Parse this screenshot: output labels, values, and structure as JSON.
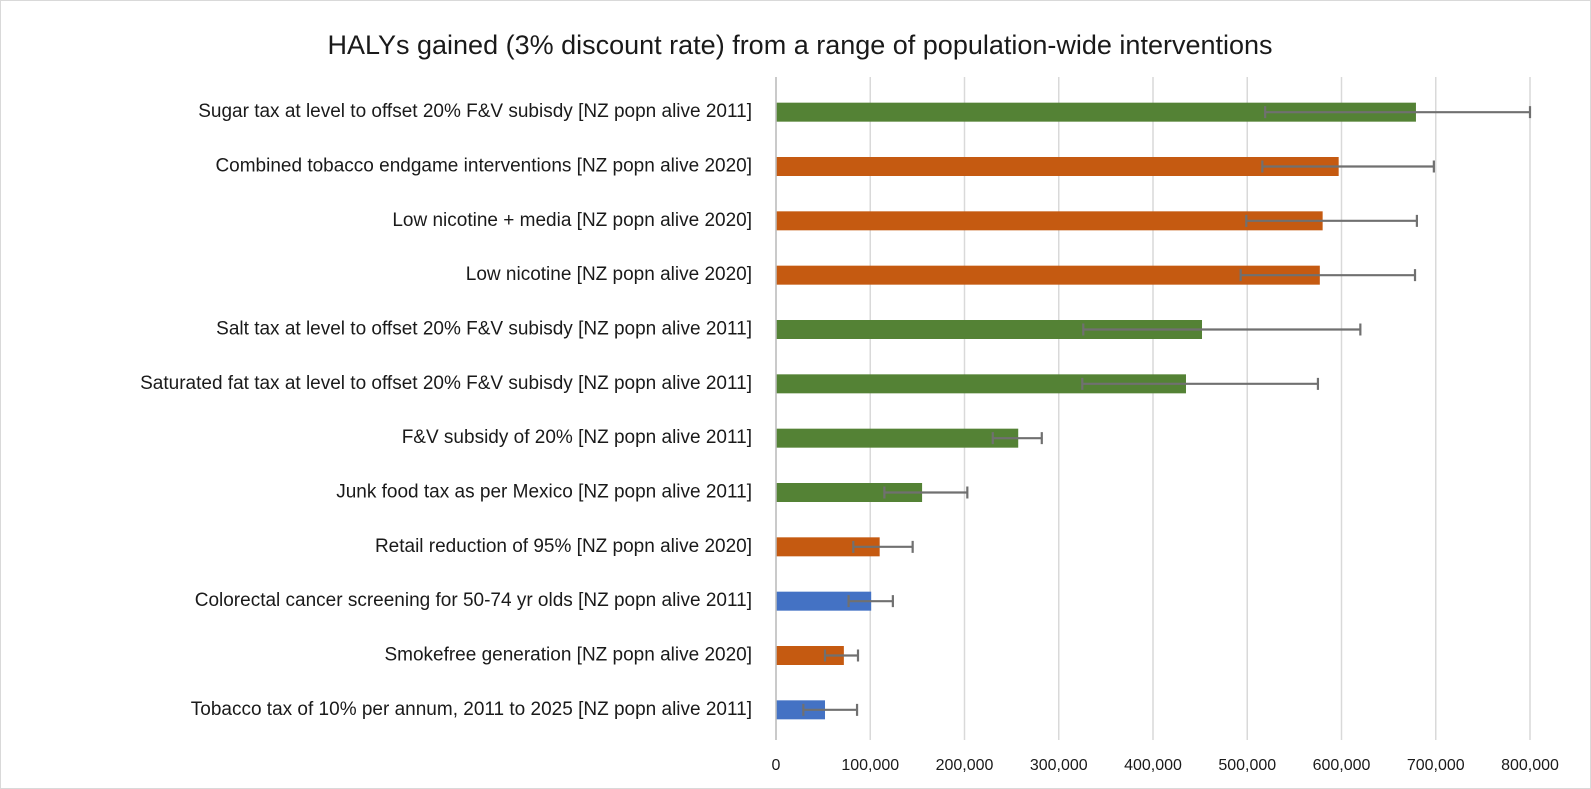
{
  "chart_data": {
    "type": "bar",
    "orientation": "horizontal",
    "title": "HALYs gained (3% discount rate) from a range of population-wide interventions",
    "categories": [
      "Sugar tax at level to offset 20% F&V subisdy [NZ popn alive 2011]",
      "Combined tobacco endgame interventions  [NZ popn alive 2020]",
      "Low nicotine + media  [NZ popn alive 2020]",
      "Low nicotine [NZ popn alive 2020]",
      "Salt tax at level to offset 20% F&V subisdy [NZ popn alive 2011]",
      "Saturated fat tax at level to offset 20% F&V subisdy [NZ popn alive 2011]",
      "F&V subsidy of 20% [NZ popn alive 2011]",
      "Junk food tax as per Mexico [NZ popn alive 2011]",
      "Retail reduction of 95%  [NZ popn alive 2020]",
      "Colorectal cancer screening for 50-74 yr olds [NZ popn alive 2011]",
      "Smokefree generation  [NZ popn alive 2020]",
      "Tobacco tax of 10% per annum, 2011 to 2025 [NZ popn alive 2011]"
    ],
    "values": [
      679000,
      597000,
      580000,
      577000,
      452000,
      435000,
      257000,
      155000,
      110000,
      101000,
      72000,
      52000
    ],
    "ci_low": [
      519000,
      516000,
      499000,
      493000,
      326000,
      325000,
      230000,
      115000,
      82000,
      77000,
      52000,
      29000
    ],
    "ci_high": [
      800000,
      698000,
      680000,
      678000,
      620000,
      575000,
      282000,
      203000,
      145000,
      124000,
      87000,
      86000
    ],
    "colors": [
      "#548235",
      "#c55a11",
      "#c55a11",
      "#c55a11",
      "#548235",
      "#548235",
      "#548235",
      "#548235",
      "#c55a11",
      "#4472c4",
      "#c55a11",
      "#4472c4"
    ],
    "error_color": "#707070",
    "xlim": [
      0,
      800000
    ],
    "xticks": [
      0,
      {
        "value": 100000,
        "label": "100,000"
      },
      {
        "value": 200000,
        "label": "200,000"
      },
      {
        "value": 300000,
        "label": "300,000"
      },
      {
        "value": 400000,
        "label": "400,000"
      },
      {
        "value": 500000,
        "label": "500,000"
      },
      {
        "value": 600000,
        "label": "600,000"
      },
      {
        "value": 700000,
        "label": "700,000"
      },
      {
        "value": 800000,
        "label": "800,000"
      }
    ],
    "grid": true
  }
}
